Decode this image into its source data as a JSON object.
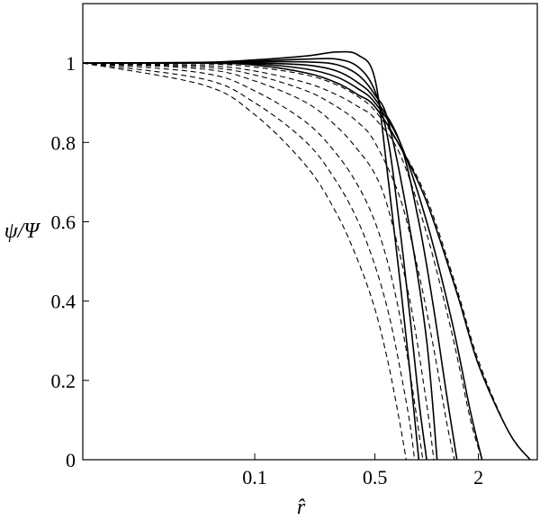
{
  "chart_data": {
    "type": "line",
    "title": "",
    "xlabel": "r̂",
    "ylabel": "ψ/Ψ",
    "x_scale": "log",
    "xlim": [
      0.01,
      4.4
    ],
    "ylim": [
      0,
      1.15
    ],
    "x_ticks": [
      {
        "value": 0.1,
        "label": "0.1"
      },
      {
        "value": 0.5,
        "label": "0.5"
      },
      {
        "value": 2,
        "label": "2"
      }
    ],
    "y_ticks": [
      {
        "value": 0,
        "label": "0"
      },
      {
        "value": 0.2,
        "label": "0.2"
      },
      {
        "value": 0.4,
        "label": "0.4"
      },
      {
        "value": 0.6,
        "label": "0.6"
      },
      {
        "value": 0.8,
        "label": "0.8"
      },
      {
        "value": 1,
        "label": "1"
      }
    ],
    "grid": false,
    "legend": "none",
    "series": [
      {
        "style": "solid",
        "x": [
          0.01,
          0.05,
          0.1,
          0.2,
          0.3,
          0.4,
          0.5,
          0.6,
          0.7,
          0.8,
          0.9
        ],
        "y": [
          1.0,
          1.002,
          1.008,
          1.018,
          1.028,
          1.02,
          0.96,
          0.7,
          0.45,
          0.22,
          0.0
        ]
      },
      {
        "style": "solid",
        "x": [
          0.01,
          0.05,
          0.1,
          0.2,
          0.3,
          0.4,
          0.5,
          0.6,
          0.7,
          0.8,
          0.9,
          1.0
        ],
        "y": [
          1.0,
          1.001,
          1.005,
          1.01,
          1.01,
          0.99,
          0.93,
          0.8,
          0.58,
          0.36,
          0.15,
          0.0
        ]
      },
      {
        "style": "solid",
        "x": [
          0.01,
          0.05,
          0.1,
          0.2,
          0.3,
          0.4,
          0.5,
          0.6,
          0.8,
          1.0,
          1.15
        ],
        "y": [
          1.0,
          1.0,
          1.003,
          1.003,
          0.996,
          0.97,
          0.92,
          0.85,
          0.58,
          0.3,
          0.0
        ]
      },
      {
        "style": "solid",
        "x": [
          0.01,
          0.05,
          0.1,
          0.2,
          0.3,
          0.4,
          0.5,
          0.7,
          0.9,
          1.1,
          1.3,
          1.5
        ],
        "y": [
          1.0,
          1.0,
          1.0,
          0.995,
          0.98,
          0.95,
          0.91,
          0.8,
          0.6,
          0.38,
          0.17,
          0.0
        ]
      },
      {
        "style": "solid",
        "x": [
          0.01,
          0.05,
          0.1,
          0.2,
          0.3,
          0.4,
          0.5,
          0.7,
          1.0,
          1.4,
          1.8,
          2.1
        ],
        "y": [
          1.0,
          1.0,
          0.998,
          0.985,
          0.965,
          0.935,
          0.9,
          0.8,
          0.6,
          0.35,
          0.12,
          0.0
        ]
      },
      {
        "style": "solid",
        "x": [
          0.01,
          0.05,
          0.1,
          0.2,
          0.3,
          0.4,
          0.5,
          0.7,
          1.0,
          1.5,
          2.0,
          3.0,
          4.0
        ],
        "y": [
          1.0,
          1.0,
          0.995,
          0.975,
          0.95,
          0.92,
          0.89,
          0.79,
          0.65,
          0.42,
          0.24,
          0.07,
          0.0
        ]
      },
      {
        "style": "dashed",
        "x": [
          0.01,
          0.05,
          0.1,
          0.2,
          0.3,
          0.4,
          0.5,
          0.7,
          1.0,
          1.5,
          2.0,
          3.0,
          4.0
        ],
        "y": [
          1.0,
          0.998,
          0.99,
          0.97,
          0.945,
          0.915,
          0.88,
          0.79,
          0.66,
          0.43,
          0.25,
          0.07,
          0.0
        ]
      },
      {
        "style": "dashed",
        "x": [
          0.01,
          0.05,
          0.1,
          0.2,
          0.3,
          0.4,
          0.5,
          0.7,
          1.0,
          1.4,
          1.8,
          2.1
        ],
        "y": [
          1.0,
          0.994,
          0.98,
          0.95,
          0.92,
          0.89,
          0.86,
          0.77,
          0.57,
          0.32,
          0.1,
          0.0
        ]
      },
      {
        "style": "dashed",
        "x": [
          0.01,
          0.05,
          0.1,
          0.2,
          0.3,
          0.4,
          0.5,
          0.7,
          0.9,
          1.1,
          1.3,
          1.45
        ],
        "y": [
          1.0,
          0.99,
          0.97,
          0.93,
          0.89,
          0.85,
          0.8,
          0.66,
          0.47,
          0.28,
          0.1,
          0.0
        ]
      },
      {
        "style": "dashed",
        "x": [
          0.01,
          0.05,
          0.1,
          0.2,
          0.3,
          0.4,
          0.5,
          0.6,
          0.8,
          1.0,
          1.1
        ],
        "y": [
          1.0,
          0.985,
          0.955,
          0.9,
          0.84,
          0.78,
          0.72,
          0.63,
          0.4,
          0.14,
          0.0
        ]
      },
      {
        "style": "dashed",
        "x": [
          0.01,
          0.05,
          0.1,
          0.2,
          0.3,
          0.4,
          0.5,
          0.6,
          0.7,
          0.8,
          0.95
        ],
        "y": [
          1.0,
          0.975,
          0.93,
          0.85,
          0.77,
          0.69,
          0.6,
          0.49,
          0.36,
          0.22,
          0.0
        ]
      },
      {
        "style": "dashed",
        "x": [
          0.01,
          0.05,
          0.1,
          0.2,
          0.3,
          0.4,
          0.5,
          0.6,
          0.7,
          0.8,
          0.85
        ],
        "y": [
          1.0,
          0.96,
          0.9,
          0.8,
          0.7,
          0.6,
          0.49,
          0.37,
          0.23,
          0.09,
          0.0
        ]
      },
      {
        "style": "dashed",
        "x": [
          0.01,
          0.05,
          0.1,
          0.2,
          0.3,
          0.4,
          0.5,
          0.6,
          0.7,
          0.76
        ],
        "y": [
          1.0,
          0.945,
          0.87,
          0.74,
          0.62,
          0.5,
          0.38,
          0.24,
          0.09,
          0.0
        ]
      }
    ]
  }
}
